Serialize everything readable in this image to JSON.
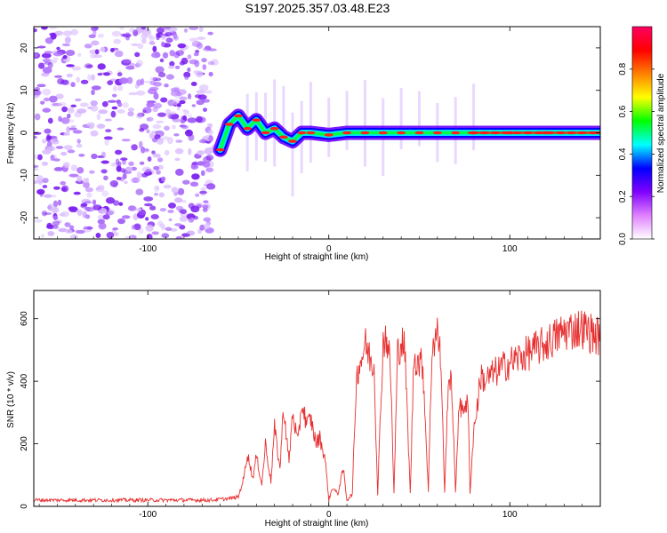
{
  "figure": {
    "title": "S197.2025.357.03.48.E23"
  },
  "chart_data": [
    {
      "type": "heatmap",
      "title": "S197.2025.357.03.48.E23",
      "xlabel": "Height of straight line (km)",
      "ylabel": "Frequency (Hz)",
      "xlim": [
        -163,
        150
      ],
      "ylim": [
        -25,
        25
      ],
      "x_ticks": [
        -100,
        0,
        100
      ],
      "y_ticks": [
        -20,
        -10,
        0,
        10,
        20
      ],
      "colorbar": {
        "label": "Normalized spectral amplitude",
        "range": [
          0.0,
          1.0
        ],
        "ticks": [
          0.0,
          0.2,
          0.4,
          0.6,
          0.8
        ],
        "colors": [
          "#ffffff",
          "#e080ff",
          "#8000ff",
          "#0000ff",
          "#00ffff",
          "#00ff00",
          "#ffff00",
          "#ff8000",
          "#ff0000",
          "#ff0060"
        ]
      },
      "noise_region_x": [
        -163,
        -63
      ],
      "signal_track": [
        {
          "x": -60,
          "y": -4
        },
        {
          "x": -55,
          "y": 2
        },
        {
          "x": -50,
          "y": 4
        },
        {
          "x": -45,
          "y": 1
        },
        {
          "x": -40,
          "y": 3
        },
        {
          "x": -35,
          "y": 0
        },
        {
          "x": -30,
          "y": 1
        },
        {
          "x": -25,
          "y": -1
        },
        {
          "x": -20,
          "y": -2
        },
        {
          "x": -15,
          "y": 0
        },
        {
          "x": -10,
          "y": 0
        },
        {
          "x": 0,
          "y": -0.5
        },
        {
          "x": 10,
          "y": 0
        },
        {
          "x": 20,
          "y": 0
        },
        {
          "x": 30,
          "y": 0
        },
        {
          "x": 40,
          "y": 0
        },
        {
          "x": 50,
          "y": 0
        },
        {
          "x": 60,
          "y": 0
        },
        {
          "x": 70,
          "y": 0
        },
        {
          "x": 80,
          "y": 0
        },
        {
          "x": 100,
          "y": 0
        },
        {
          "x": 120,
          "y": 0
        },
        {
          "x": 150,
          "y": 0
        }
      ]
    },
    {
      "type": "line",
      "xlabel": "Height of straight line (km)",
      "ylabel": "SNR (10 * v/v)",
      "xlim": [
        -163,
        150
      ],
      "ylim": [
        0,
        690
      ],
      "x_ticks": [
        -100,
        0,
        100
      ],
      "y_ticks": [
        0,
        200,
        400,
        600
      ],
      "series": [
        {
          "name": "SNR",
          "color": "#e83030",
          "x": [
            -163,
            -140,
            -120,
            -100,
            -80,
            -65,
            -55,
            -50,
            -47,
            -45,
            -42,
            -40,
            -37,
            -35,
            -32,
            -30,
            -27,
            -25,
            -22,
            -20,
            -17,
            -15,
            -12,
            -10,
            -7,
            -5,
            -2,
            0,
            2,
            5,
            8,
            10,
            13,
            15,
            16,
            18,
            20,
            23,
            25,
            27,
            30,
            32,
            34,
            36,
            38,
            40,
            42,
            45,
            47,
            50,
            52,
            55,
            57,
            60,
            62,
            64,
            66,
            68,
            70,
            72,
            73,
            75,
            77,
            78,
            80,
            82,
            84,
            86,
            90,
            95,
            100,
            110,
            120,
            130,
            140,
            150
          ],
          "y": [
            20,
            20,
            20,
            20,
            20,
            20,
            25,
            30,
            90,
            170,
            90,
            160,
            70,
            200,
            80,
            250,
            120,
            320,
            140,
            300,
            200,
            330,
            260,
            280,
            200,
            220,
            150,
            20,
            60,
            40,
            120,
            20,
            40,
            380,
            440,
            470,
            520,
            470,
            450,
            40,
            530,
            540,
            450,
            40,
            490,
            530,
            500,
            40,
            480,
            460,
            450,
            50,
            510,
            560,
            460,
            40,
            410,
            380,
            40,
            350,
            300,
            330,
            320,
            40,
            240,
            320,
            420,
            400,
            420,
            440,
            460,
            490,
            520,
            560,
            570,
            540
          ]
        }
      ]
    }
  ]
}
